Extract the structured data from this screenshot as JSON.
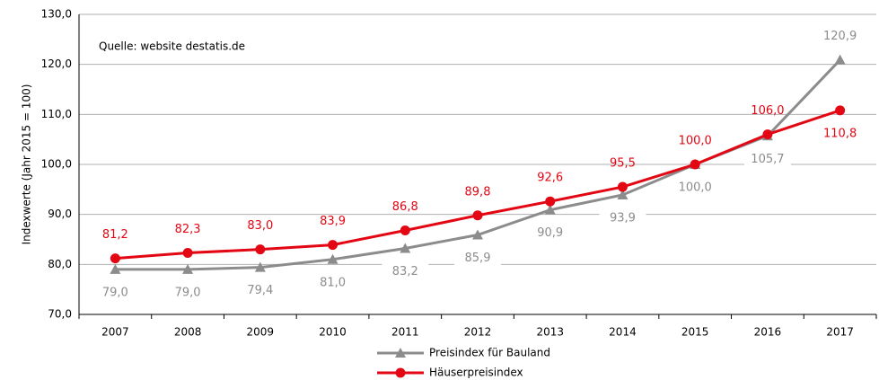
{
  "chart_data": {
    "type": "line",
    "annotation": "Quelle: website destatis.de",
    "y_label": "Indexwerte (Jahr 2015 = 100)",
    "categories": [
      "2007",
      "2008",
      "2009",
      "2010",
      "2011",
      "2012",
      "2013",
      "2014",
      "2015",
      "2016",
      "2017"
    ],
    "series": [
      {
        "name": "Preisindex für Bauland",
        "color": "#8c8c8c",
        "marker": "triangle",
        "values": [
          79.0,
          79.0,
          79.4,
          81.0,
          83.2,
          85.9,
          90.9,
          93.9,
          100.0,
          105.7,
          120.9
        ],
        "value_labels": [
          "79,0",
          "79,0",
          "79,4",
          "81,0",
          "83,2",
          "85,9",
          "90,9",
          "93,9",
          "100,0",
          "105,7",
          "120,9"
        ]
      },
      {
        "name": "Häuserpreisindex",
        "color": "#e30613",
        "marker": "circle",
        "values": [
          81.2,
          82.3,
          83.0,
          83.9,
          86.8,
          89.8,
          92.6,
          95.5,
          100.0,
          106.0,
          110.8
        ],
        "value_labels": [
          "81,2",
          "82,3",
          "83,0",
          "83,9",
          "86,8",
          "89,8",
          "92,6",
          "95,5",
          "100,0",
          "106,0",
          "110,8"
        ]
      }
    ],
    "ylim": [
      70,
      130
    ],
    "yticks": [
      {
        "value": 70,
        "label": "70,0"
      },
      {
        "value": 80,
        "label": "80,0"
      },
      {
        "value": 90,
        "label": "90,0"
      },
      {
        "value": 100,
        "label": "100,0"
      },
      {
        "value": 110,
        "label": "110,0"
      },
      {
        "value": 120,
        "label": "120,0"
      },
      {
        "value": 130,
        "label": "130,0"
      }
    ],
    "grid": true
  }
}
